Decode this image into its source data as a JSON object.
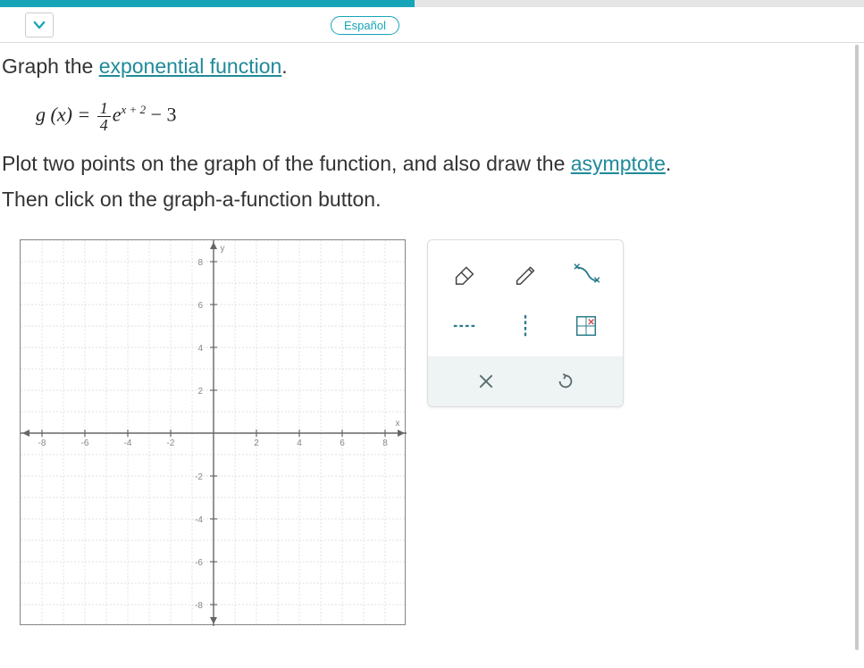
{
  "colors": {
    "accent": "#16a5b8",
    "link": "#1f8a99",
    "text": "#333333",
    "grid_minor": "#d8d8d8",
    "grid_major": "#c0c0c0",
    "axis": "#666666",
    "tool_bg": "#eef3f3"
  },
  "progress_percent": 48,
  "language_button": "Español",
  "instruction_1a": "Graph the ",
  "instruction_1_link": "exponential function",
  "instruction_1b": ".",
  "equation": {
    "lhs": "g (x) =",
    "frac_num": "1",
    "frac_den": "4",
    "base": "e",
    "exponent": "x + 2",
    "tail": " − 3"
  },
  "instruction_2a": "Plot two points on the graph of the function, and also draw the ",
  "instruction_2_link": "asymptote",
  "instruction_2b": ".",
  "instruction_3": "Then click on the graph-a-function button.",
  "graph": {
    "xlim": [
      -9,
      9
    ],
    "ylim": [
      -9,
      9
    ],
    "major_step": 2,
    "minor_step": 1,
    "tick_labels_x": [
      "-8",
      "-6",
      "-4",
      "-2",
      "",
      "2",
      "4",
      "6",
      "8"
    ],
    "tick_labels_y": [
      "8",
      "6",
      "4",
      "2",
      "",
      "-2",
      "-4",
      "-6",
      "-8"
    ],
    "x_axis_label": "x",
    "y_axis_label": "y",
    "label_fontsize": 10,
    "label_color": "#888888"
  },
  "tools": {
    "eraser": "eraser",
    "pencil": "pencil",
    "curve": "curve",
    "h_asymptote": "horizontal-asymptote",
    "v_asymptote": "vertical-asymptote",
    "graph_func": "graph-a-function",
    "clear": "clear",
    "undo": "undo"
  }
}
